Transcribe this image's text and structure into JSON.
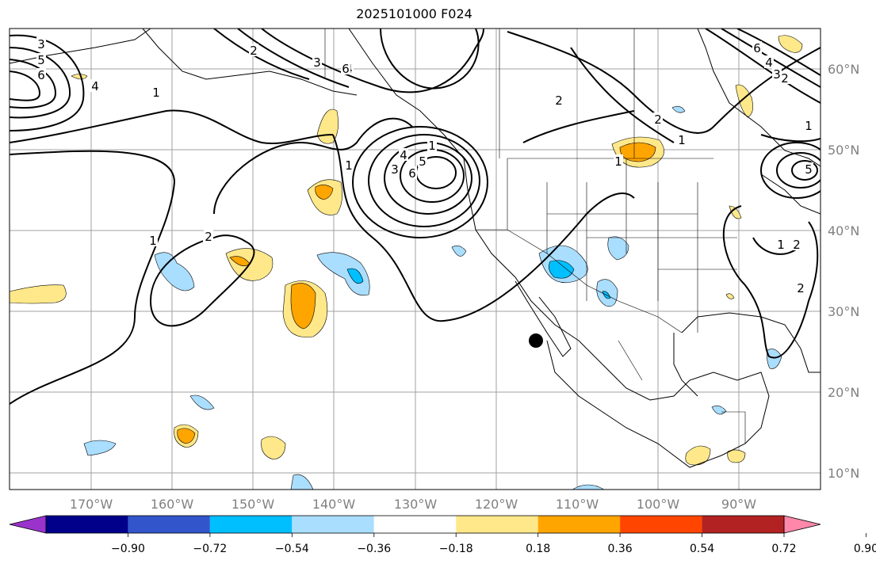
{
  "title": "2025101000 F024",
  "longitude_labels": [
    "170°W",
    "160°W",
    "150°W",
    "140°W",
    "130°W",
    "120°W",
    "110°W",
    "100°W",
    "90°W"
  ],
  "latitude_labels": [
    "60°N",
    "50°N",
    "40°N",
    "30°N",
    "20°N",
    "10°N"
  ],
  "colorbar": {
    "tick_labels": [
      "−0.90",
      "−0.72",
      "−0.54",
      "−0.36",
      "−0.18",
      "0.18",
      "0.36",
      "0.54",
      "0.72",
      "0.90"
    ],
    "colors": [
      "#9933cc",
      "#00008b",
      "#3355cc",
      "#00bfff",
      "#aadeff",
      "#ffffff",
      "#ffe88a",
      "#ffa500",
      "#ff4500",
      "#b22222",
      "#ff88aa"
    ]
  },
  "contour_labels": [
    "3",
    "5",
    "6",
    "4",
    "1",
    "2",
    "2",
    "3",
    "4",
    "6",
    "1",
    "1",
    "2",
    "1",
    "5",
    "6",
    "4",
    "3",
    "1",
    "2",
    "1",
    "2",
    "1",
    "2",
    "5",
    "6",
    "4",
    "3",
    "2",
    "1",
    "2"
  ],
  "marker": "black-dot"
}
